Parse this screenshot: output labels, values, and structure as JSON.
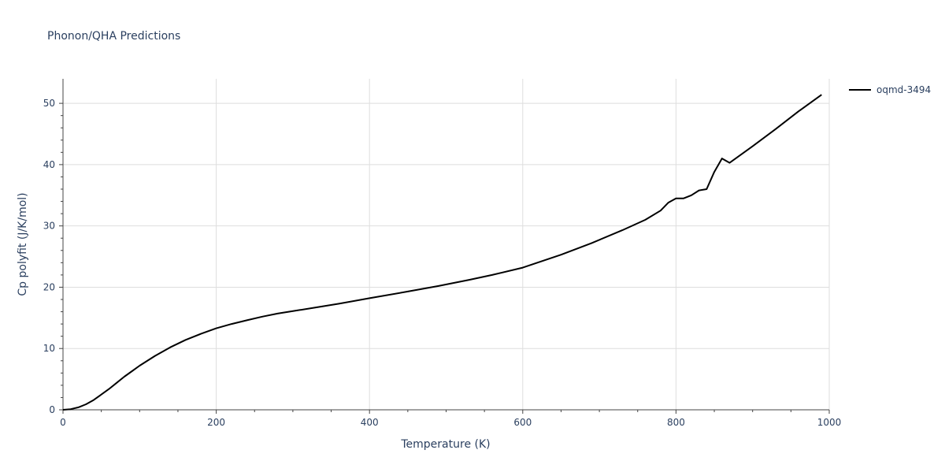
{
  "chart_data": {
    "type": "line",
    "title": "Phonon/QHA Predictions",
    "xlabel": "Temperature (K)",
    "ylabel": "Cp polyfit (J/K/mol)",
    "xlim": [
      0,
      1000
    ],
    "ylim": [
      0,
      54
    ],
    "x_ticks": [
      0,
      200,
      400,
      600,
      800,
      1000
    ],
    "y_ticks": [
      0,
      10,
      20,
      30,
      40,
      50
    ],
    "grid": true,
    "legend_position": "top-right",
    "series": [
      {
        "name": "oqmd-3494",
        "color": "#000000",
        "x": [
          0,
          10,
          20,
          30,
          40,
          50,
          60,
          70,
          80,
          90,
          100,
          120,
          140,
          160,
          180,
          200,
          220,
          240,
          260,
          280,
          300,
          330,
          360,
          400,
          450,
          490,
          530,
          560,
          600,
          650,
          690,
          730,
          760,
          780,
          790,
          800,
          810,
          820,
          830,
          840,
          850,
          860,
          870,
          900,
          930,
          960,
          990
        ],
        "y": [
          0,
          0.1,
          0.4,
          0.9,
          1.6,
          2.5,
          3.4,
          4.4,
          5.4,
          6.3,
          7.2,
          8.8,
          10.2,
          11.4,
          12.4,
          13.3,
          14.0,
          14.6,
          15.2,
          15.7,
          16.1,
          16.7,
          17.3,
          18.2,
          19.3,
          20.2,
          21.2,
          22.0,
          23.2,
          25.3,
          27.2,
          29.3,
          31.0,
          32.5,
          33.8,
          34.5,
          34.5,
          35.0,
          35.8,
          36.0,
          38.8,
          41.0,
          40.3,
          43.0,
          45.8,
          48.7,
          51.4
        ]
      }
    ]
  }
}
